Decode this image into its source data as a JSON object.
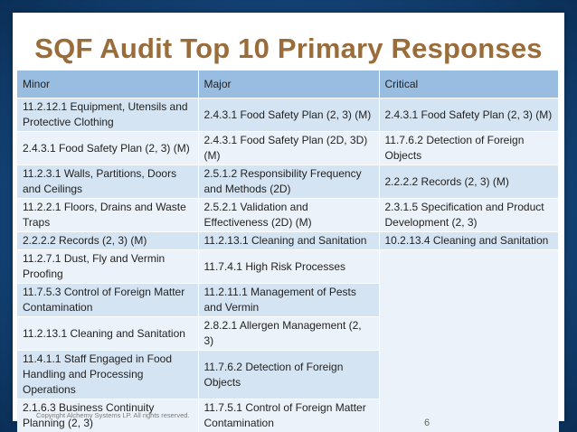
{
  "title": "SQF Audit Top 10 Primary Responses",
  "headers": [
    "Minor",
    "Major",
    "Critical"
  ],
  "rows": [
    [
      "11.2.12.1 Equipment, Utensils and Protective Clothing",
      "2.4.3.1 Food Safety Plan (2, 3) (M)",
      "2.4.3.1 Food Safety Plan (2, 3) (M)"
    ],
    [
      "2.4.3.1 Food Safety Plan (2, 3) (M)",
      "2.4.3.1 Food Safety Plan (2D, 3D) (M)",
      "11.7.6.2 Detection of Foreign Objects"
    ],
    [
      "11.2.3.1 Walls, Partitions, Doors and Ceilings",
      "2.5.1.2 Responsibility Frequency and Methods (2D)",
      "2.2.2.2 Records (2, 3) (M)"
    ],
    [
      "11.2.2.1 Floors, Drains and Waste Traps",
      "2.5.2.1 Validation and Effectiveness (2D) (M)",
      "2.3.1.5 Specification and Product Development (2, 3)"
    ],
    [
      "2.2.2.2 Records (2, 3) (M)",
      "11.2.13.1 Cleaning and Sanitation",
      "10.2.13.4 Cleaning and Sanitation"
    ],
    [
      "11.2.7.1 Dust, Fly and Vermin Proofing",
      "11.7.4.1 High Risk Processes",
      ""
    ],
    [
      "11.7.5.3 Control of Foreign Matter Contamination",
      "11.2.11.1 Management of Pests and Vermin",
      ""
    ],
    [
      "11.2.13.1 Cleaning and Sanitation",
      "2.8.2.1 Allergen Management (2, 3)",
      ""
    ],
    [
      "11.4.1.1 Staff Engaged in Food Handling and Processing Operations",
      "11.7.6.2 Detection of Foreign Objects",
      ""
    ],
    [
      "2.1.6.3 Business Continuity Planning (2, 3)",
      "11.7.5.1 Control of Foreign Matter Contamination",
      ""
    ]
  ],
  "footer": {
    "copyright": "Copyright Alchemy Systems LP.  All rights reserved.",
    "page_number": "6"
  },
  "colors": {
    "title": "#9a6c3a",
    "header_bg": "#98bde0",
    "row_dark": "#d5e4f2",
    "row_light": "#ebf2f9",
    "frame": "#15487d"
  }
}
